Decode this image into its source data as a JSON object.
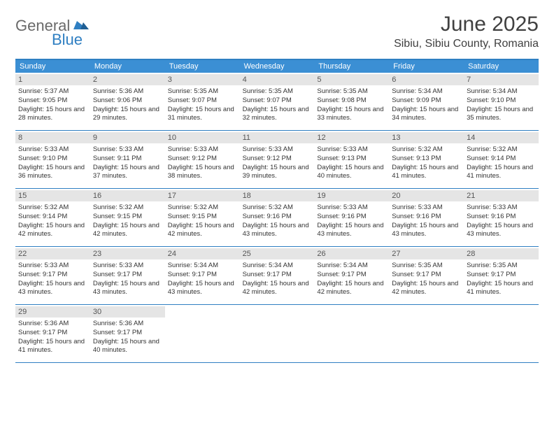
{
  "logo": {
    "text1": "General",
    "text2": "Blue"
  },
  "title": "June 2025",
  "location": "Sibiu, Sibiu County, Romania",
  "colors": {
    "header_bg": "#3b8fd4",
    "header_border": "#2f7fc2",
    "daynum_bg": "#e5e5e5",
    "text": "#333333"
  },
  "daysOfWeek": [
    "Sunday",
    "Monday",
    "Tuesday",
    "Wednesday",
    "Thursday",
    "Friday",
    "Saturday"
  ],
  "weeks": [
    [
      {
        "n": "1",
        "sr": "5:37 AM",
        "ss": "9:05 PM",
        "dl": "15 hours and 28 minutes."
      },
      {
        "n": "2",
        "sr": "5:36 AM",
        "ss": "9:06 PM",
        "dl": "15 hours and 29 minutes."
      },
      {
        "n": "3",
        "sr": "5:35 AM",
        "ss": "9:07 PM",
        "dl": "15 hours and 31 minutes."
      },
      {
        "n": "4",
        "sr": "5:35 AM",
        "ss": "9:07 PM",
        "dl": "15 hours and 32 minutes."
      },
      {
        "n": "5",
        "sr": "5:35 AM",
        "ss": "9:08 PM",
        "dl": "15 hours and 33 minutes."
      },
      {
        "n": "6",
        "sr": "5:34 AM",
        "ss": "9:09 PM",
        "dl": "15 hours and 34 minutes."
      },
      {
        "n": "7",
        "sr": "5:34 AM",
        "ss": "9:10 PM",
        "dl": "15 hours and 35 minutes."
      }
    ],
    [
      {
        "n": "8",
        "sr": "5:33 AM",
        "ss": "9:10 PM",
        "dl": "15 hours and 36 minutes."
      },
      {
        "n": "9",
        "sr": "5:33 AM",
        "ss": "9:11 PM",
        "dl": "15 hours and 37 minutes."
      },
      {
        "n": "10",
        "sr": "5:33 AM",
        "ss": "9:12 PM",
        "dl": "15 hours and 38 minutes."
      },
      {
        "n": "11",
        "sr": "5:33 AM",
        "ss": "9:12 PM",
        "dl": "15 hours and 39 minutes."
      },
      {
        "n": "12",
        "sr": "5:33 AM",
        "ss": "9:13 PM",
        "dl": "15 hours and 40 minutes."
      },
      {
        "n": "13",
        "sr": "5:32 AM",
        "ss": "9:13 PM",
        "dl": "15 hours and 41 minutes."
      },
      {
        "n": "14",
        "sr": "5:32 AM",
        "ss": "9:14 PM",
        "dl": "15 hours and 41 minutes."
      }
    ],
    [
      {
        "n": "15",
        "sr": "5:32 AM",
        "ss": "9:14 PM",
        "dl": "15 hours and 42 minutes."
      },
      {
        "n": "16",
        "sr": "5:32 AM",
        "ss": "9:15 PM",
        "dl": "15 hours and 42 minutes."
      },
      {
        "n": "17",
        "sr": "5:32 AM",
        "ss": "9:15 PM",
        "dl": "15 hours and 42 minutes."
      },
      {
        "n": "18",
        "sr": "5:32 AM",
        "ss": "9:16 PM",
        "dl": "15 hours and 43 minutes."
      },
      {
        "n": "19",
        "sr": "5:33 AM",
        "ss": "9:16 PM",
        "dl": "15 hours and 43 minutes."
      },
      {
        "n": "20",
        "sr": "5:33 AM",
        "ss": "9:16 PM",
        "dl": "15 hours and 43 minutes."
      },
      {
        "n": "21",
        "sr": "5:33 AM",
        "ss": "9:16 PM",
        "dl": "15 hours and 43 minutes."
      }
    ],
    [
      {
        "n": "22",
        "sr": "5:33 AM",
        "ss": "9:17 PM",
        "dl": "15 hours and 43 minutes."
      },
      {
        "n": "23",
        "sr": "5:33 AM",
        "ss": "9:17 PM",
        "dl": "15 hours and 43 minutes."
      },
      {
        "n": "24",
        "sr": "5:34 AM",
        "ss": "9:17 PM",
        "dl": "15 hours and 43 minutes."
      },
      {
        "n": "25",
        "sr": "5:34 AM",
        "ss": "9:17 PM",
        "dl": "15 hours and 42 minutes."
      },
      {
        "n": "26",
        "sr": "5:34 AM",
        "ss": "9:17 PM",
        "dl": "15 hours and 42 minutes."
      },
      {
        "n": "27",
        "sr": "5:35 AM",
        "ss": "9:17 PM",
        "dl": "15 hours and 42 minutes."
      },
      {
        "n": "28",
        "sr": "5:35 AM",
        "ss": "9:17 PM",
        "dl": "15 hours and 41 minutes."
      }
    ],
    [
      {
        "n": "29",
        "sr": "5:36 AM",
        "ss": "9:17 PM",
        "dl": "15 hours and 41 minutes."
      },
      {
        "n": "30",
        "sr": "5:36 AM",
        "ss": "9:17 PM",
        "dl": "15 hours and 40 minutes."
      },
      null,
      null,
      null,
      null,
      null
    ]
  ],
  "labels": {
    "sunrise": "Sunrise: ",
    "sunset": "Sunset: ",
    "daylight": "Daylight: "
  }
}
